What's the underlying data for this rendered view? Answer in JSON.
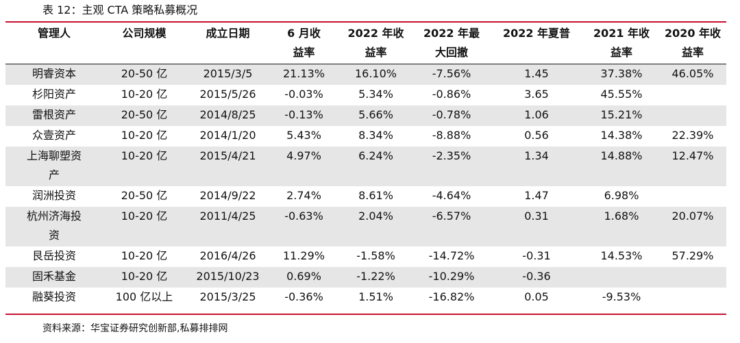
{
  "caption": "表 12：主观 CTA 策略私募概况",
  "headers": [
    [
      "管理人"
    ],
    [
      "公司规模"
    ],
    [
      "成立日期"
    ],
    [
      "6 月收",
      "益率"
    ],
    [
      "2022 年收",
      "益率"
    ],
    [
      "2022 年最",
      "大回撤"
    ],
    [
      "2022 年夏普"
    ],
    [
      "2021 年收",
      "益率"
    ],
    [
      "2020 年收",
      "益率"
    ]
  ],
  "rows": [
    {
      "name": [
        "明睿资本"
      ],
      "cells": [
        "20-50 亿",
        "2015/3/5",
        "21.13%",
        "16.10%",
        "-7.56%",
        "1.45",
        "37.38%",
        "46.05%"
      ]
    },
    {
      "name": [
        "杉阳资产"
      ],
      "cells": [
        "10-20 亿",
        "2015/5/26",
        "-0.03%",
        "5.34%",
        "-0.86%",
        "3.65",
        "45.55%",
        ""
      ]
    },
    {
      "name": [
        "雷根资产"
      ],
      "cells": [
        "20-50 亿",
        "2014/8/25",
        "-0.13%",
        "5.66%",
        "-0.78%",
        "1.06",
        "15.21%",
        ""
      ]
    },
    {
      "name": [
        "众壹资产"
      ],
      "cells": [
        "10-20 亿",
        "2014/1/20",
        "5.43%",
        "8.34%",
        "-8.88%",
        "0.56",
        "14.38%",
        "22.39%"
      ]
    },
    {
      "name": [
        "上海聊塑资",
        "产"
      ],
      "cells": [
        "10-20 亿",
        "2015/4/21",
        "4.97%",
        "6.24%",
        "-2.35%",
        "1.34",
        "14.88%",
        "12.47%"
      ]
    },
    {
      "name": [
        "润洲投资"
      ],
      "cells": [
        "20-50 亿",
        "2014/9/22",
        "2.74%",
        "8.61%",
        "-4.64%",
        "1.47",
        "6.98%",
        ""
      ]
    },
    {
      "name": [
        "杭州济海投",
        "资"
      ],
      "cells": [
        "10-20 亿",
        "2011/4/25",
        "-0.63%",
        "2.04%",
        "-6.57%",
        "0.31",
        "1.68%",
        "20.07%"
      ]
    },
    {
      "name": [
        "艮岳投资"
      ],
      "cells": [
        "10-20 亿",
        "2016/4/26",
        "11.29%",
        "-1.58%",
        "-14.72%",
        "-0.31",
        "14.53%",
        "57.29%"
      ]
    },
    {
      "name": [
        "固禾基金"
      ],
      "cells": [
        "10-20 亿",
        "2015/10/23",
        "0.69%",
        "-1.22%",
        "-10.29%",
        "-0.36",
        "",
        ""
      ]
    },
    {
      "name": [
        "融葵投资"
      ],
      "cells": [
        "100 亿以上",
        "2015/3/25",
        "-0.36%",
        "1.51%",
        "-16.82%",
        "0.05",
        "-9.53%",
        ""
      ]
    }
  ],
  "source": "资料来源：华宝证券研究创新部,私募排排网",
  "colors": {
    "rule": "#c8102e",
    "shade": "#e6e6e6"
  }
}
